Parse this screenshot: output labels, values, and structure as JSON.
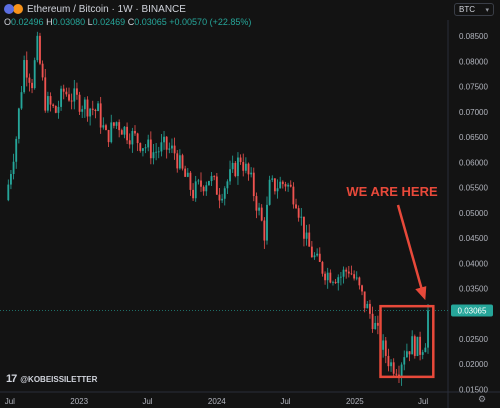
{
  "header": {
    "symbol_line": "Ethereum / Bitcoin · 1W · BINANCE",
    "ohlc": [
      {
        "label": "O",
        "value": "0.02496"
      },
      {
        "label": "H",
        "value": "0.03080"
      },
      {
        "label": "L",
        "value": "0.02469"
      },
      {
        "label": "C",
        "value": "0.03065"
      }
    ],
    "change": "+0.00570 (+22.85%)",
    "currency_badge": "BTC"
  },
  "watermark": {
    "logo": "17",
    "handle": "@KOBEISSILETTER"
  },
  "colors": {
    "up": "#26a69a",
    "down": "#ef5350",
    "annotation": "#e8493a",
    "background": "#131313"
  },
  "icons": {
    "currency_chevron": "chevron-down-icon",
    "settings": "gear-icon"
  },
  "chart_data": {
    "type": "candlestick",
    "interval": "1W",
    "exchange": "BINANCE",
    "y_axis": {
      "position": "right",
      "range": [
        0.0145,
        0.0862
      ],
      "ticks": [
        "0.08500",
        "0.08000",
        "0.07500",
        "0.07000",
        "0.06500",
        "0.06000",
        "0.05500",
        "0.05000",
        "0.04500",
        "0.04000",
        "0.03500",
        "0.03000",
        "0.02500",
        "0.02000",
        "0.01500"
      ]
    },
    "x_axis": {
      "ticks": [
        {
          "label": "Jul",
          "date": "2022-07-01"
        },
        {
          "label": "2023",
          "date": "2023-01-01"
        },
        {
          "label": "Jul",
          "date": "2023-07-01"
        },
        {
          "label": "2024",
          "date": "2024-01-01"
        },
        {
          "label": "Jul",
          "date": "2024-07-01"
        },
        {
          "label": "2025",
          "date": "2025-01-01"
        },
        {
          "label": "Jul",
          "date": "2025-07-01"
        }
      ]
    },
    "last_price": "0.03065",
    "price_path": [
      [
        "2022-06-20",
        0.0525
      ],
      [
        "2022-07-18",
        0.065
      ],
      [
        "2022-08-08",
        0.08
      ],
      [
        "2022-08-29",
        0.076
      ],
      [
        "2022-09-12",
        0.083
      ],
      [
        "2022-10-03",
        0.072
      ],
      [
        "2022-10-31",
        0.07
      ],
      [
        "2022-11-21",
        0.074
      ],
      [
        "2023-01-02",
        0.072
      ],
      [
        "2023-02-20",
        0.07
      ],
      [
        "2023-03-13",
        0.065
      ],
      [
        "2023-04-10",
        0.068
      ],
      [
        "2023-05-08",
        0.066
      ],
      [
        "2023-06-12",
        0.064
      ],
      [
        "2023-07-17",
        0.062
      ],
      [
        "2023-08-14",
        0.063
      ],
      [
        "2023-09-11",
        0.062
      ],
      [
        "2023-10-02",
        0.058
      ],
      [
        "2023-10-30",
        0.054
      ],
      [
        "2023-12-11",
        0.057
      ],
      [
        "2024-01-08",
        0.054
      ],
      [
        "2024-02-05",
        0.057
      ],
      [
        "2024-03-04",
        0.061
      ],
      [
        "2024-04-01",
        0.056
      ],
      [
        "2024-05-06",
        0.046
      ],
      [
        "2024-05-20",
        0.055
      ],
      [
        "2024-07-01",
        0.056
      ],
      [
        "2024-07-29",
        0.053
      ],
      [
        "2024-08-26",
        0.044
      ],
      [
        "2024-09-23",
        0.04
      ],
      [
        "2024-10-21",
        0.038
      ],
      [
        "2024-11-25",
        0.0375
      ],
      [
        "2024-12-16",
        0.039
      ],
      [
        "2025-01-06",
        0.036
      ],
      [
        "2025-01-27",
        0.032
      ],
      [
        "2025-02-17",
        0.029
      ],
      [
        "2025-03-10",
        0.024
      ],
      [
        "2025-04-07",
        0.02
      ],
      [
        "2025-04-28",
        0.0195
      ],
      [
        "2025-05-12",
        0.0225
      ],
      [
        "2025-06-02",
        0.024
      ],
      [
        "2025-06-23",
        0.023
      ],
      [
        "2025-07-07",
        0.025
      ],
      [
        "2025-07-14",
        0.03065
      ]
    ],
    "reference_line": 0.03065,
    "annotation": {
      "text": "WE ARE HERE",
      "box_time": [
        "2025-03-10",
        "2025-07-28"
      ],
      "box_price": [
        0.0175,
        0.0315
      ]
    }
  }
}
